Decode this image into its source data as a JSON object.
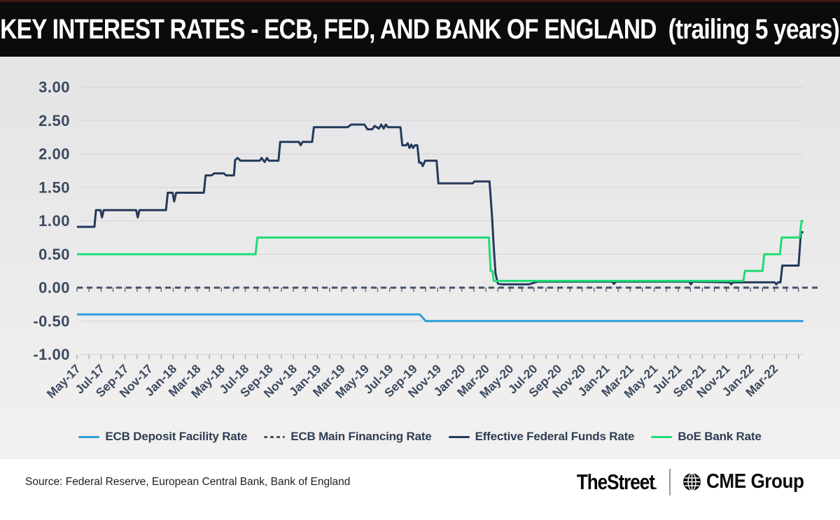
{
  "header": {
    "title": "KEY INTEREST RATES - ECB, FED, AND BANK OF ENGLAND  (trailing 5 years)"
  },
  "chart_data": {
    "type": "line",
    "title": "KEY INTEREST RATES - ECB, FED, AND BANK OF ENGLAND (trailing 5 years)",
    "xlabel": "",
    "ylabel": "",
    "ylim": [
      -1.0,
      3.0
    ],
    "grid": true,
    "legend_position": "bottom",
    "x_unit": "month index, 0 = May-2017",
    "x_minor_tick_range": [
      0,
      60
    ],
    "y_ticks": [
      {
        "v": 3.0,
        "label": "3.00"
      },
      {
        "v": 2.5,
        "label": "2.50"
      },
      {
        "v": 2.0,
        "label": "2.00"
      },
      {
        "v": 1.5,
        "label": "1.50"
      },
      {
        "v": 1.0,
        "label": "1.00"
      },
      {
        "v": 0.5,
        "label": "0.50"
      },
      {
        "v": 0.0,
        "label": "0.00"
      },
      {
        "v": -0.5,
        "label": "-0.50"
      },
      {
        "v": -1.0,
        "label": "-1.00"
      }
    ],
    "x_ticks": [
      {
        "m": 0,
        "label": "May-17"
      },
      {
        "m": 2,
        "label": "Jul-17"
      },
      {
        "m": 4,
        "label": "Sep-17"
      },
      {
        "m": 6,
        "label": "Nov-17"
      },
      {
        "m": 8,
        "label": "Jan-18"
      },
      {
        "m": 10,
        "label": "Mar-18"
      },
      {
        "m": 12,
        "label": "May-18"
      },
      {
        "m": 14,
        "label": "Jul-18"
      },
      {
        "m": 16,
        "label": "Sep-18"
      },
      {
        "m": 18,
        "label": "Nov-18"
      },
      {
        "m": 20,
        "label": "Jan-19"
      },
      {
        "m": 22,
        "label": "Mar-19"
      },
      {
        "m": 24,
        "label": "May-19"
      },
      {
        "m": 26,
        "label": "Jul-19"
      },
      {
        "m": 28,
        "label": "Sep-19"
      },
      {
        "m": 30,
        "label": "Nov-19"
      },
      {
        "m": 32,
        "label": "Jan-20"
      },
      {
        "m": 34,
        "label": "Mar-20"
      },
      {
        "m": 36,
        "label": "May-20"
      },
      {
        "m": 38,
        "label": "Jul-20"
      },
      {
        "m": 40,
        "label": "Sep-20"
      },
      {
        "m": 42,
        "label": "Nov-20"
      },
      {
        "m": 44,
        "label": "Jan-21"
      },
      {
        "m": 46,
        "label": "Mar-21"
      },
      {
        "m": 48,
        "label": "May-21"
      },
      {
        "m": 50,
        "label": "Jul-21"
      },
      {
        "m": 52,
        "label": "Sep-21"
      },
      {
        "m": 54,
        "label": "Nov-21"
      },
      {
        "m": 56,
        "label": "Jan-22"
      },
      {
        "m": 58,
        "label": "Mar-22"
      }
    ],
    "series": [
      {
        "name": "ECB Deposit Facility Rate",
        "color": "#2D9CDB",
        "dash": null,
        "width": 3,
        "points": [
          [
            0,
            -0.4
          ],
          [
            28.5,
            -0.4
          ],
          [
            29.0,
            -0.5
          ],
          [
            60.4,
            -0.5
          ]
        ]
      },
      {
        "name": "ECB Main Financing Rate",
        "color": "#45536A",
        "dash": "8 6",
        "width": 3,
        "points": [
          [
            0,
            0.0
          ],
          [
            61.8,
            0.0
          ]
        ]
      },
      {
        "name": "Effective Federal Funds Rate",
        "color": "#24395B",
        "dash": null,
        "width": 3,
        "points": [
          [
            0,
            0.91
          ],
          [
            1.45,
            0.91
          ],
          [
            1.58,
            1.16
          ],
          [
            1.95,
            1.16
          ],
          [
            2.08,
            1.05
          ],
          [
            2.22,
            1.16
          ],
          [
            4.92,
            1.16
          ],
          [
            5.05,
            1.05
          ],
          [
            5.2,
            1.16
          ],
          [
            7.4,
            1.16
          ],
          [
            7.55,
            1.42
          ],
          [
            7.95,
            1.42
          ],
          [
            8.08,
            1.29
          ],
          [
            8.25,
            1.42
          ],
          [
            10.55,
            1.42
          ],
          [
            10.7,
            1.68
          ],
          [
            11.2,
            1.68
          ],
          [
            11.4,
            1.71
          ],
          [
            12.2,
            1.71
          ],
          [
            12.4,
            1.68
          ],
          [
            13.05,
            1.68
          ],
          [
            13.15,
            1.91
          ],
          [
            13.35,
            1.94
          ],
          [
            13.6,
            1.9
          ],
          [
            15.2,
            1.9
          ],
          [
            15.35,
            1.94
          ],
          [
            15.6,
            1.88
          ],
          [
            15.8,
            1.94
          ],
          [
            15.95,
            1.9
          ],
          [
            16.75,
            1.9
          ],
          [
            16.9,
            2.18
          ],
          [
            18.45,
            2.18
          ],
          [
            18.6,
            2.13
          ],
          [
            18.75,
            2.18
          ],
          [
            19.55,
            2.18
          ],
          [
            19.7,
            2.4
          ],
          [
            22.5,
            2.4
          ],
          [
            22.8,
            2.44
          ],
          [
            23.9,
            2.44
          ],
          [
            24.15,
            2.37
          ],
          [
            24.55,
            2.37
          ],
          [
            24.75,
            2.42
          ],
          [
            25.1,
            2.38
          ],
          [
            25.3,
            2.44
          ],
          [
            25.5,
            2.38
          ],
          [
            25.68,
            2.44
          ],
          [
            25.85,
            2.4
          ],
          [
            26.9,
            2.4
          ],
          [
            27.05,
            2.13
          ],
          [
            27.35,
            2.13
          ],
          [
            27.5,
            2.16
          ],
          [
            27.65,
            2.09
          ],
          [
            27.8,
            2.14
          ],
          [
            27.95,
            2.09
          ],
          [
            28.1,
            2.13
          ],
          [
            28.3,
            2.13
          ],
          [
            28.45,
            1.87
          ],
          [
            28.62,
            1.87
          ],
          [
            28.75,
            1.82
          ],
          [
            28.95,
            1.9
          ],
          [
            29.9,
            1.9
          ],
          [
            30.05,
            1.56
          ],
          [
            32.9,
            1.56
          ],
          [
            33.05,
            1.59
          ],
          [
            34.3,
            1.59
          ],
          [
            34.5,
            1.1
          ],
          [
            34.65,
            0.62
          ],
          [
            34.8,
            0.21
          ],
          [
            35.0,
            0.06
          ],
          [
            35.3,
            0.05
          ],
          [
            37.6,
            0.05
          ],
          [
            38.3,
            0.09
          ],
          [
            44.5,
            0.09
          ],
          [
            44.65,
            0.055
          ],
          [
            44.8,
            0.09
          ],
          [
            50.9,
            0.09
          ],
          [
            51.05,
            0.05
          ],
          [
            51.2,
            0.09
          ],
          [
            54.25,
            0.08
          ],
          [
            54.4,
            0.05
          ],
          [
            54.55,
            0.08
          ],
          [
            58.0,
            0.08
          ],
          [
            58.15,
            0.05
          ],
          [
            58.3,
            0.08
          ],
          [
            58.5,
            0.08
          ],
          [
            58.65,
            0.33
          ],
          [
            60.0,
            0.33
          ],
          [
            60.2,
            0.83
          ],
          [
            60.4,
            0.83
          ]
        ]
      },
      {
        "name": "BoE Bank Rate",
        "color": "#1EDC74",
        "dash": null,
        "width": 3,
        "points": [
          [
            0,
            0.5
          ],
          [
            14.85,
            0.5
          ],
          [
            15.0,
            0.75
          ],
          [
            34.25,
            0.75
          ],
          [
            34.4,
            0.25
          ],
          [
            34.55,
            0.25
          ],
          [
            34.65,
            0.1
          ],
          [
            55.4,
            0.1
          ],
          [
            55.55,
            0.25
          ],
          [
            57.0,
            0.25
          ],
          [
            57.15,
            0.5
          ],
          [
            58.45,
            0.5
          ],
          [
            58.6,
            0.75
          ],
          [
            60.1,
            0.75
          ],
          [
            60.25,
            1.0
          ],
          [
            60.4,
            1.0
          ]
        ]
      }
    ]
  },
  "footer": {
    "source": "Source: Federal Reserve, European Central Bank, Bank of England",
    "thestreet": "TheStreet",
    "thestreet_mark": ".",
    "cme": "CME Group"
  }
}
